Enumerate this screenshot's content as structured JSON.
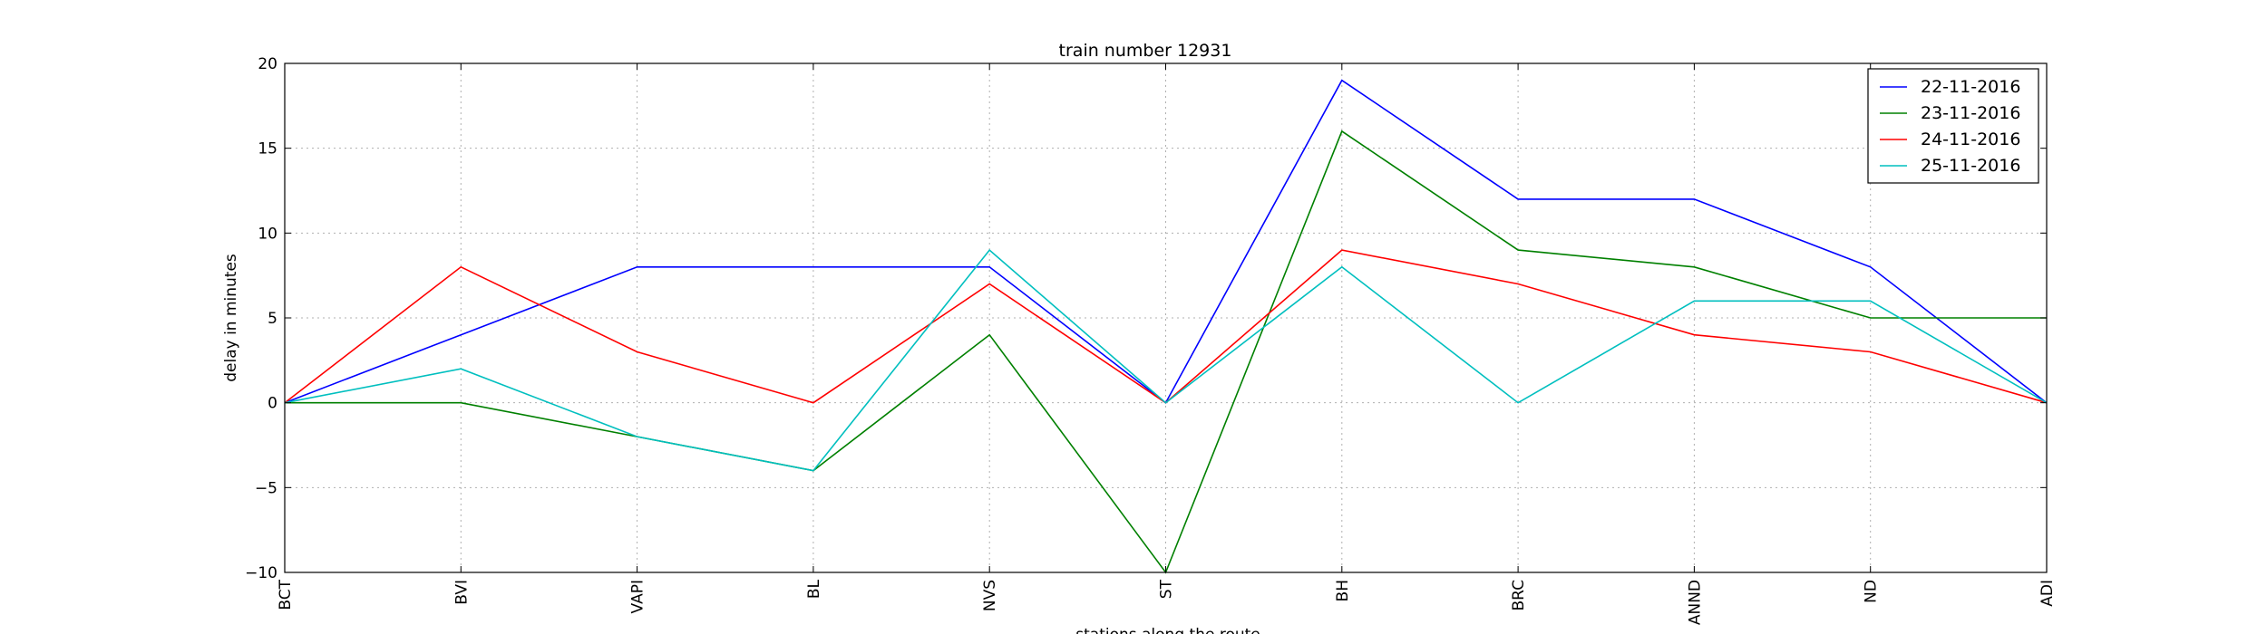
{
  "chart_data": {
    "type": "line",
    "title": "train number 12931",
    "xlabel": "stations along the route",
    "ylabel": "delay in minutes",
    "categories": [
      "BCT",
      "BVI",
      "VAPI",
      "BL",
      "NVS",
      "ST",
      "BH",
      "BRC",
      "ANND",
      "ND",
      "ADI"
    ],
    "ylim": [
      -10,
      20
    ],
    "yticks": [
      -10,
      -5,
      0,
      5,
      10,
      15,
      20
    ],
    "ytick_labels": [
      "−10",
      "−5",
      "0",
      "5",
      "10",
      "15",
      "20"
    ],
    "grid": true,
    "legend_position": "top-right",
    "series": [
      {
        "name": "22-11-2016",
        "color": "#0000ff",
        "values": [
          0,
          4,
          8,
          8,
          8,
          0,
          19,
          12,
          12,
          8,
          0
        ]
      },
      {
        "name": "23-11-2016",
        "color": "#008000",
        "values": [
          0,
          0,
          -2,
          -4,
          4,
          -10,
          16,
          9,
          8,
          5,
          5
        ]
      },
      {
        "name": "24-11-2016",
        "color": "#ff0000",
        "values": [
          0,
          8,
          3,
          0,
          7,
          0,
          9,
          7,
          4,
          3,
          0
        ]
      },
      {
        "name": "25-11-2016",
        "color": "#00bfbf",
        "values": [
          0,
          2,
          -2,
          -4,
          9,
          0,
          8,
          0,
          6,
          6,
          0
        ]
      }
    ]
  }
}
